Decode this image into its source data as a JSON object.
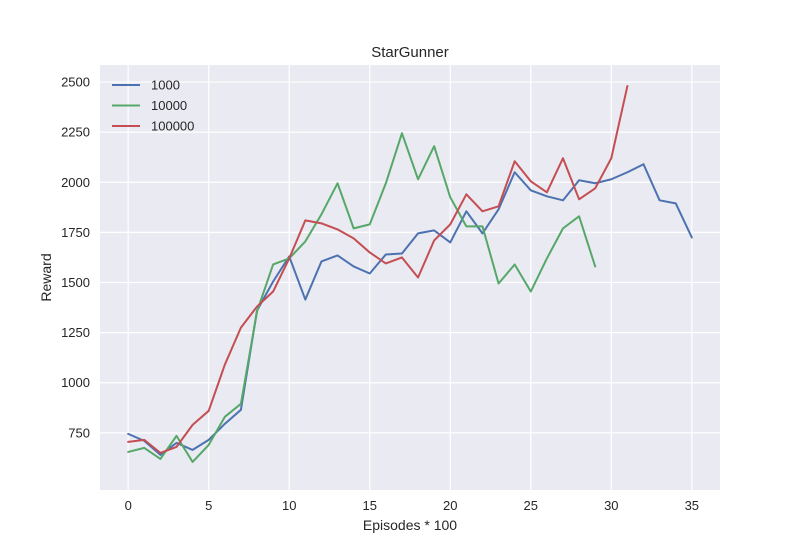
{
  "chart_data": {
    "type": "line",
    "title": "StarGunner",
    "xlabel": "Episodes * 100",
    "ylabel": "Reward",
    "xlim": [
      -1.75,
      36.75
    ],
    "ylim": [
      465,
      2585
    ],
    "xticks": [
      0,
      5,
      10,
      15,
      20,
      25,
      30,
      35
    ],
    "yticks": [
      750,
      1000,
      1250,
      1500,
      1750,
      2000,
      2250,
      2500
    ],
    "grid": true,
    "background": "#EAEAF2",
    "legend_position": "top-left",
    "series": [
      {
        "name": "1000",
        "color": "#4C72B0",
        "x": [
          0,
          1,
          2,
          3,
          4,
          5,
          6,
          7,
          8,
          9,
          10,
          11,
          12,
          13,
          14,
          15,
          16,
          17,
          18,
          19,
          20,
          21,
          22,
          23,
          24,
          25,
          26,
          27,
          28,
          29,
          30,
          31,
          32,
          33,
          34,
          35
        ],
        "values": [
          745,
          710,
          640,
          700,
          665,
          715,
          795,
          865,
          1360,
          1505,
          1630,
          1415,
          1605,
          1635,
          1580,
          1545,
          1640,
          1645,
          1745,
          1760,
          1700,
          1855,
          1745,
          1865,
          2050,
          1960,
          1930,
          1910,
          2010,
          1995,
          2015,
          2050,
          2090,
          1910,
          1895,
          1725
        ]
      },
      {
        "name": "10000",
        "color": "#55A868",
        "x": [
          0,
          1,
          2,
          3,
          4,
          5,
          6,
          7,
          8,
          9,
          10,
          11,
          12,
          13,
          14,
          15,
          16,
          17,
          18,
          19,
          20,
          21,
          22,
          23,
          24,
          25,
          26,
          27,
          28,
          29
        ],
        "values": [
          655,
          675,
          620,
          735,
          605,
          690,
          830,
          895,
          1355,
          1590,
          1620,
          1705,
          1840,
          1995,
          1770,
          1790,
          1995,
          2245,
          2015,
          2180,
          1925,
          1780,
          1780,
          1495,
          1590,
          1455,
          1620,
          1770,
          1830,
          1580
        ]
      },
      {
        "name": "100000",
        "color": "#C44E52",
        "x": [
          0,
          1,
          2,
          3,
          4,
          5,
          6,
          7,
          8,
          9,
          10,
          11,
          12,
          13,
          14,
          15,
          16,
          17,
          18,
          19,
          20,
          21,
          22,
          23,
          24,
          25,
          26,
          27,
          28,
          29,
          30,
          31
        ],
        "values": [
          705,
          715,
          650,
          680,
          790,
          860,
          1090,
          1275,
          1380,
          1455,
          1620,
          1810,
          1795,
          1765,
          1720,
          1650,
          1595,
          1625,
          1525,
          1710,
          1790,
          1940,
          1855,
          1880,
          2105,
          2005,
          1950,
          2120,
          1915,
          1970,
          2120,
          2480
        ]
      }
    ]
  }
}
